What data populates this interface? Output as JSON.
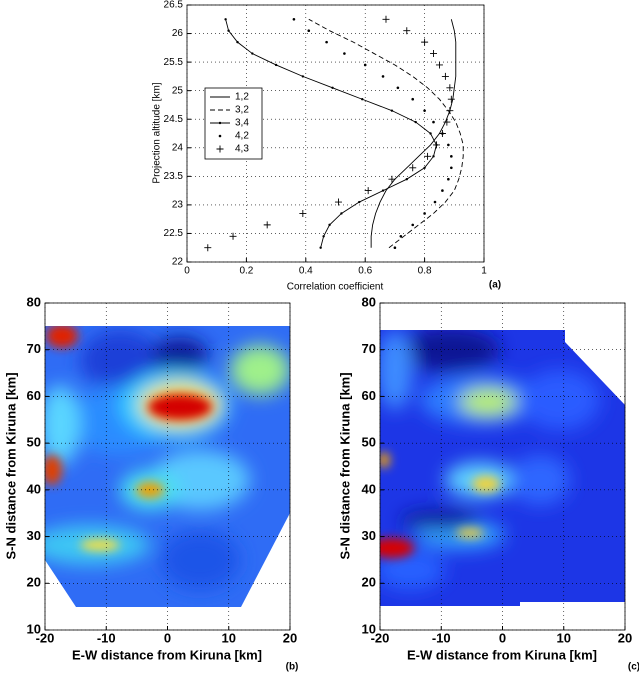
{
  "chart_data": [
    {
      "type": "line",
      "x_label": "Correlation coefficient",
      "y_label": "Projection altitude [km]",
      "panel_label": "(a)",
      "xlim": [
        0,
        1
      ],
      "xticks": [
        0,
        0.2,
        0.4,
        0.6,
        0.8,
        1
      ],
      "ylim": [
        22,
        26.5
      ],
      "yticks": [
        22,
        22.5,
        23,
        23.5,
        24,
        24.5,
        25,
        25.5,
        26,
        26.5
      ],
      "grid": true,
      "legend": "left",
      "y": [
        22.25,
        22.45,
        22.65,
        22.85,
        23.05,
        23.25,
        23.45,
        23.65,
        23.85,
        24.05,
        24.25,
        24.45,
        24.65,
        24.85,
        25.05,
        25.25,
        25.45,
        25.65,
        25.85,
        26.05,
        26.25
      ],
      "series": [
        {
          "name": "1,2",
          "style": "solid",
          "color": "#000000",
          "values": [
            0.62,
            0.62,
            0.625,
            0.635,
            0.65,
            0.67,
            0.7,
            0.74,
            0.78,
            0.82,
            0.85,
            0.87,
            0.885,
            0.895,
            0.9,
            0.905,
            0.905,
            0.905,
            0.905,
            0.9,
            0.89
          ]
        },
        {
          "name": "3,2",
          "style": "dashed",
          "color": "#000000",
          "values": [
            0.68,
            0.73,
            0.78,
            0.83,
            0.87,
            0.9,
            0.915,
            0.925,
            0.93,
            0.93,
            0.92,
            0.905,
            0.88,
            0.85,
            0.81,
            0.76,
            0.7,
            0.63,
            0.56,
            0.48,
            0.41
          ]
        },
        {
          "name": "3,4",
          "style": "line-dot",
          "color": "#000000",
          "values": [
            0.45,
            0.46,
            0.48,
            0.52,
            0.58,
            0.66,
            0.74,
            0.8,
            0.83,
            0.84,
            0.82,
            0.77,
            0.69,
            0.59,
            0.49,
            0.39,
            0.3,
            0.22,
            0.17,
            0.14,
            0.13
          ]
        },
        {
          "name": "4,2",
          "style": "dot",
          "color": "#000000",
          "values": [
            0.7,
            0.72,
            0.76,
            0.8,
            0.835,
            0.86,
            0.88,
            0.89,
            0.89,
            0.88,
            0.86,
            0.83,
            0.8,
            0.76,
            0.71,
            0.66,
            0.6,
            0.53,
            0.47,
            0.41,
            0.36
          ]
        },
        {
          "name": "4,3",
          "style": "plus",
          "color": "#000000",
          "values": [
            0.07,
            0.155,
            0.27,
            0.39,
            0.51,
            0.61,
            0.69,
            0.76,
            0.81,
            0.84,
            0.86,
            0.875,
            0.885,
            0.89,
            0.885,
            0.87,
            0.85,
            0.83,
            0.8,
            0.74,
            0.67
          ]
        }
      ]
    },
    {
      "type": "heatmap",
      "x_label": "E-W distance from Kiruna [km]",
      "y_label": "S-N distance from Kiruna [km]",
      "panel_label": "(b)",
      "xlim": [
        -20,
        20
      ],
      "xticks": [
        -20,
        -10,
        0,
        10,
        20
      ],
      "ylim": [
        10,
        80
      ],
      "yticks": [
        10,
        20,
        30,
        40,
        50,
        60,
        70,
        80
      ],
      "grid": true
    },
    {
      "type": "heatmap",
      "x_label": "E-W distance from Kiruna [km]",
      "y_label": "S-N distance from Kiruna [km]",
      "panel_label": "(c)",
      "xlim": [
        -20,
        20
      ],
      "xticks": [
        -20,
        -10,
        0,
        10,
        20
      ],
      "ylim": [
        10,
        80
      ],
      "yticks": [
        10,
        20,
        30,
        40,
        50,
        60,
        70,
        80
      ],
      "grid": true
    }
  ]
}
